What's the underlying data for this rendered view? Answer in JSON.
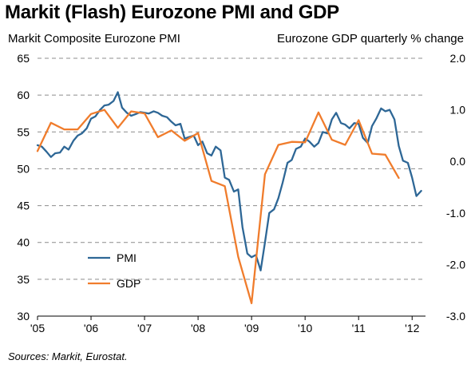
{
  "chart_data": {
    "type": "line",
    "title": "Markit (Flash) Eurozone PMI and GDP",
    "ylabel_left": "Markit Composite Eurozone PMI",
    "ylabel_right": "Eurozone GDP quarterly % change",
    "source": "Sources: Markit, Eurostat.",
    "x_range": [
      2005.0,
      2012.25
    ],
    "x_ticks": [
      {
        "value": 2005,
        "label": "'05"
      },
      {
        "value": 2006,
        "label": "'06"
      },
      {
        "value": 2007,
        "label": "'07"
      },
      {
        "value": 2008,
        "label": "'08"
      },
      {
        "value": 2009,
        "label": "'09"
      },
      {
        "value": 2010,
        "label": "'10"
      },
      {
        "value": 2011,
        "label": "'11"
      },
      {
        "value": 2012,
        "label": "'12"
      }
    ],
    "y_left": {
      "range": [
        30,
        65
      ],
      "ticks": [
        30,
        35,
        40,
        45,
        50,
        55,
        60,
        65
      ],
      "tick_labels": [
        "30",
        "35",
        "40",
        "45",
        "50",
        "55",
        "60",
        "65"
      ]
    },
    "y_right": {
      "range": [
        -3.0,
        2.0
      ],
      "ticks": [
        -3.0,
        -2.0,
        -1.0,
        0.0,
        1.0,
        2.0
      ],
      "tick_labels": [
        "-3.0",
        "-2.0",
        "-1.0",
        "0.0",
        "1.0",
        "2.0"
      ]
    },
    "grid": "horizontal dashed",
    "legend_position": "bottom-left",
    "series": [
      {
        "name": "PMI",
        "axis": "left",
        "color": "#2e6796",
        "x": [
          2005.0,
          2005.08,
          2005.17,
          2005.25,
          2005.33,
          2005.42,
          2005.5,
          2005.58,
          2005.67,
          2005.75,
          2005.83,
          2005.92,
          2006.0,
          2006.08,
          2006.17,
          2006.25,
          2006.33,
          2006.42,
          2006.5,
          2006.58,
          2006.67,
          2006.75,
          2006.83,
          2006.92,
          2007.0,
          2007.08,
          2007.17,
          2007.25,
          2007.33,
          2007.42,
          2007.5,
          2007.58,
          2007.67,
          2007.75,
          2007.83,
          2007.92,
          2008.0,
          2008.08,
          2008.17,
          2008.25,
          2008.33,
          2008.42,
          2008.5,
          2008.58,
          2008.67,
          2008.75,
          2008.83,
          2008.92,
          2009.0,
          2009.08,
          2009.17,
          2009.25,
          2009.33,
          2009.42,
          2009.5,
          2009.58,
          2009.67,
          2009.75,
          2009.83,
          2009.92,
          2010.0,
          2010.08,
          2010.17,
          2010.25,
          2010.33,
          2010.42,
          2010.5,
          2010.58,
          2010.67,
          2010.75,
          2010.83,
          2010.92,
          2011.0,
          2011.08,
          2011.17,
          2011.25,
          2011.33,
          2011.42,
          2011.5,
          2011.58,
          2011.67,
          2011.75,
          2011.83,
          2011.92,
          2012.0,
          2012.08,
          2012.17
        ],
        "values": [
          53.2,
          53.0,
          52.3,
          51.6,
          52.1,
          52.2,
          53.0,
          52.6,
          53.8,
          54.5,
          54.8,
          55.5,
          56.8,
          57.1,
          58.0,
          58.6,
          58.7,
          59.2,
          60.4,
          58.3,
          57.6,
          57.2,
          57.4,
          57.7,
          57.6,
          57.5,
          57.8,
          57.6,
          57.2,
          57.0,
          56.4,
          55.9,
          56.1,
          54.1,
          54.3,
          54.5,
          53.2,
          53.7,
          52.1,
          51.8,
          53.0,
          52.5,
          48.8,
          48.5,
          46.9,
          47.2,
          42.1,
          38.5,
          38.0,
          38.3,
          36.2,
          40.0,
          44.0,
          44.5,
          46.0,
          48.1,
          50.8,
          51.2,
          52.7,
          53.0,
          54.1,
          53.7,
          53.0,
          53.5,
          55.0,
          54.8,
          56.7,
          57.6,
          56.2,
          56.0,
          55.5,
          56.2,
          56.1,
          54.2,
          53.5,
          55.8,
          56.8,
          58.2,
          57.8,
          58.0,
          56.7,
          53.1,
          51.1,
          50.8,
          48.8,
          46.3,
          47.0
        ]
      },
      {
        "name": "GDP",
        "axis": "right",
        "color": "#f07c2c",
        "x": [
          2005.0,
          2005.25,
          2005.5,
          2005.75,
          2006.0,
          2006.25,
          2006.5,
          2006.75,
          2007.0,
          2007.25,
          2007.5,
          2007.75,
          2008.0,
          2008.25,
          2008.5,
          2008.75,
          2009.0,
          2009.25,
          2009.5,
          2009.75,
          2010.0,
          2010.25,
          2010.5,
          2010.75,
          2011.0,
          2011.25,
          2011.5,
          2011.75
        ],
        "values": [
          0.2,
          0.75,
          0.62,
          0.62,
          0.92,
          1.0,
          0.65,
          0.97,
          0.93,
          0.47,
          0.6,
          0.4,
          0.55,
          -0.38,
          -0.48,
          -1.85,
          -2.75,
          -0.25,
          0.32,
          0.38,
          0.37,
          0.95,
          0.42,
          0.32,
          0.8,
          0.15,
          0.13,
          -0.32
        ]
      }
    ]
  }
}
